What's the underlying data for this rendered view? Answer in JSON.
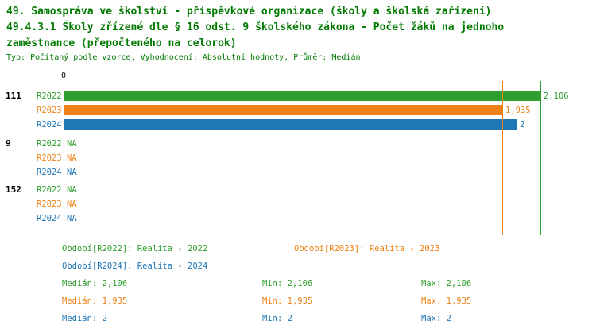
{
  "title": {
    "line1": "49. Samospráva ve školství - příspěvkové organizace (školy a školská zařízení)",
    "line2": "49.4.3.1 Školy zřízené dle § 16 odst. 9 školského zákona - Počet žáků na jednoho",
    "line3": "zaměstnance (přepočteného na celorok)",
    "meta": "Typ: Počítaný podle vzorce, Vyhodnocení: Absolutní hodnoty, Průměr: Medián"
  },
  "colors": {
    "green": "#2E9E2E",
    "orange": "#EE8113",
    "blue": "#1F77B4",
    "title_green": "#007A00",
    "axis": "#000000"
  },
  "chart_data": {
    "type": "bar",
    "orientation": "horizontal",
    "x_origin_label": "0",
    "xlim": [
      0,
      2.35
    ],
    "grid": false,
    "series_colors": {
      "R2022": "green",
      "R2023": "orange",
      "R2024": "blue"
    },
    "groups": [
      {
        "label": "111",
        "rows": [
          {
            "series": "R2022",
            "value": 2.106,
            "display": "2,106"
          },
          {
            "series": "R2023",
            "value": 1.935,
            "display": "1,935"
          },
          {
            "series": "R2024",
            "value": 2,
            "display": "2"
          }
        ]
      },
      {
        "label": "9",
        "rows": [
          {
            "series": "R2022",
            "value": null,
            "display": "NA"
          },
          {
            "series": "R2023",
            "value": null,
            "display": "NA"
          },
          {
            "series": "R2024",
            "value": null,
            "display": "NA"
          }
        ]
      },
      {
        "label": "152",
        "rows": [
          {
            "series": "R2022",
            "value": null,
            "display": "NA"
          },
          {
            "series": "R2023",
            "value": null,
            "display": "NA"
          },
          {
            "series": "R2024",
            "value": null,
            "display": "NA"
          }
        ]
      }
    ],
    "median_markers": [
      {
        "series": "R2022",
        "value": 2.106
      },
      {
        "series": "R2023",
        "value": 1.935
      },
      {
        "series": "R2024",
        "value": 2
      }
    ]
  },
  "legend": [
    {
      "series": "R2022",
      "label": "Období[R2022]: Realita - 2022",
      "color": "green"
    },
    {
      "series": "R2023",
      "label": "Období[R2023]: Realita - 2023",
      "color": "orange"
    },
    {
      "series": "R2024",
      "label": "Období[R2024]: Realita - 2024",
      "color": "blue"
    }
  ],
  "stats": [
    {
      "color": "green",
      "median": "Medián: 2,106",
      "min": "Min: 2,106",
      "max": "Max: 2,106"
    },
    {
      "color": "orange",
      "median": "Medián: 1,935",
      "min": "Min: 1,935",
      "max": "Max: 1,935"
    },
    {
      "color": "blue",
      "median": "Medián: 2",
      "min": "Min: 2",
      "max": "Max: 2"
    }
  ]
}
